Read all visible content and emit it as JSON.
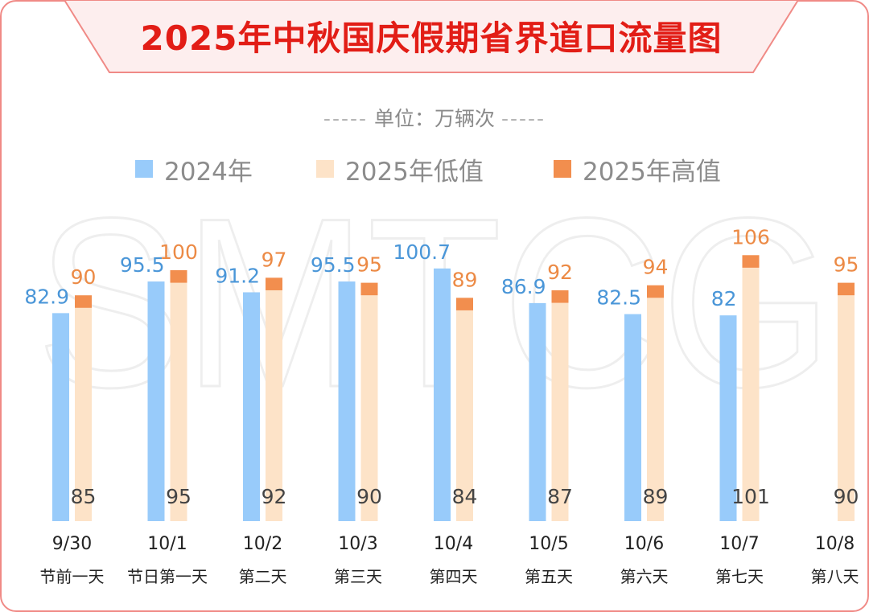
{
  "title": "2025年中秋国庆假期省界道口流量图",
  "unit_text": "单位：万辆次",
  "unit_dashes": "-----",
  "watermark_text": "SMTCG",
  "colors": {
    "frame": "#f08a86",
    "title": "#e21d16",
    "banner_fill": "#fdeeee",
    "bar_2024": "#98cbfa",
    "bar_2025_low": "#fde3c8",
    "bar_2025_high": "#f28e4e",
    "label_2024": "#4a96d8",
    "label_2025_high": "#ec8a45",
    "label_2025_low": "#444444",
    "axis_text": "#222222"
  },
  "chart_data": {
    "type": "bar",
    "title": "2025年中秋国庆假期省界道口流量图",
    "unit": "万辆次",
    "legend_position": "top-center",
    "categories": [
      "9/30",
      "10/1",
      "10/2",
      "10/3",
      "10/4",
      "10/5",
      "10/6",
      "10/7",
      "10/8"
    ],
    "subcategories": [
      "节前一天",
      "节日第一天",
      "第二天",
      "第三天",
      "第四天",
      "第五天",
      "第六天",
      "第七天",
      "第八天"
    ],
    "series": [
      {
        "name": "2024年",
        "values": [
          82.9,
          95.5,
          91.2,
          95.5,
          100.7,
          86.9,
          82.5,
          82,
          null
        ],
        "labels": [
          "82.9",
          "95.5",
          "91.2",
          "95.5",
          "100.7",
          "86.9",
          "82.5",
          "82",
          ""
        ]
      },
      {
        "name": "2025年低值",
        "values": [
          85,
          95,
          92,
          90,
          84,
          87,
          89,
          101,
          90
        ],
        "labels": [
          "85",
          "95",
          "92",
          "90",
          "84",
          "87",
          "89",
          "101",
          "90"
        ]
      },
      {
        "name": "2025年高值",
        "values": [
          90,
          100,
          97,
          95,
          89,
          92,
          94,
          106,
          95
        ],
        "labels": [
          "90",
          "100",
          "97",
          "95",
          "89",
          "92",
          "94",
          "106",
          "95"
        ]
      }
    ],
    "grid": false
  }
}
